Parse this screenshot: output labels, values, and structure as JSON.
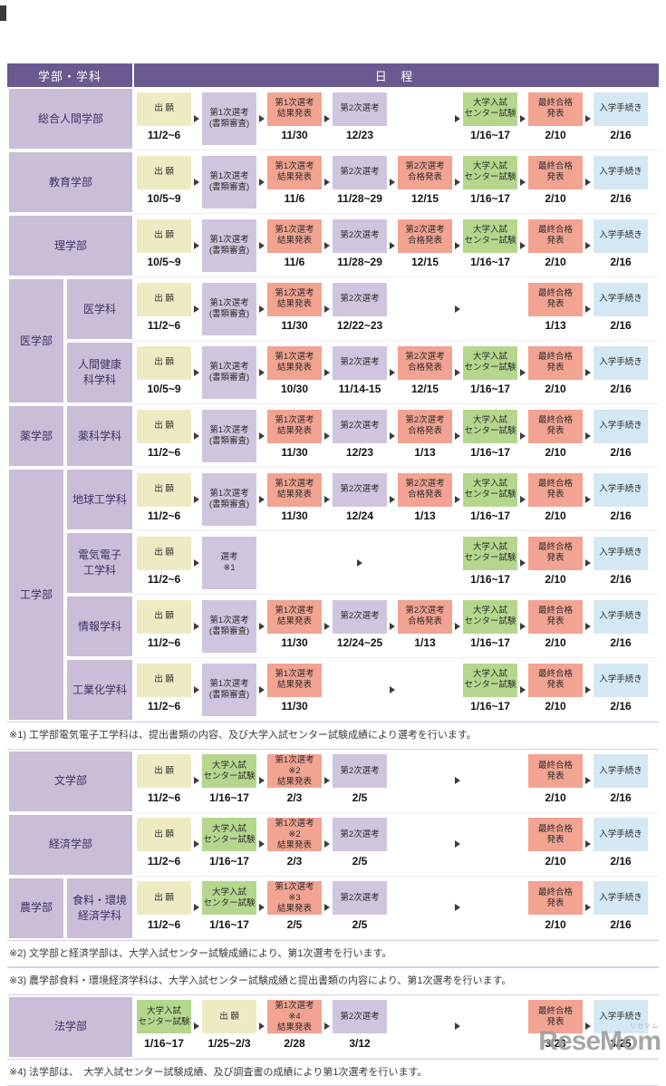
{
  "header": {
    "left": "学部・学科",
    "right": "日 程"
  },
  "watermark": {
    "text": "ReseMom",
    "sub": "リセマム"
  },
  "cell_kinds": {
    "app": {
      "bg": "#eeebc4",
      "lines": [
        "出 願"
      ],
      "full": false
    },
    "screen1": {
      "bg": "#d0c5df",
      "lines": [
        "第1次選考",
        "(書類審査)"
      ],
      "full": true
    },
    "res1": {
      "bg": "#f2a392",
      "lines": [
        "第1次選考",
        "結果発表"
      ],
      "full": false
    },
    "sel2": {
      "bg": "#d0c5df",
      "lines": [
        "第2次選考"
      ],
      "full": false
    },
    "pass2": {
      "bg": "#f2a392",
      "lines": [
        "第2次選考",
        "合格発表"
      ],
      "full": false
    },
    "center": {
      "bg": "#b5d78d",
      "lines": [
        "大学入試",
        "センター試験"
      ],
      "full": false
    },
    "final": {
      "bg": "#f2a392",
      "lines": [
        "最終合格",
        "発表"
      ],
      "full": false
    },
    "proc": {
      "bg": "#d3e8f3",
      "lines": [
        "入学手続き"
      ],
      "full": false
    },
    "sel_n1": {
      "bg": "#d0c5df",
      "lines": [
        "選考",
        "※1"
      ],
      "full": true
    },
    "res1_n2": {
      "bg": "#f2a392",
      "lines": [
        "第1次選考",
        "※2",
        "結果発表"
      ],
      "full": false
    },
    "res1_n3": {
      "bg": "#f2a392",
      "lines": [
        "第1次選考",
        "※3",
        "結果発表"
      ],
      "full": false
    },
    "res1_n4": {
      "bg": "#f2a392",
      "lines": [
        "第1次選考",
        "※4",
        "結果発表"
      ],
      "full": false
    }
  },
  "sections": [
    {
      "rows": [
        {
          "left": {
            "type": "full",
            "label": "総合人間学部"
          },
          "seq": [
            {
              "k": "app",
              "d": "11/2~6"
            },
            {
              "k": "screen1"
            },
            {
              "k": "res1",
              "d": "11/30"
            },
            {
              "k": "sel2",
              "d": "12/23"
            },
            {
              "k": "empty"
            },
            {
              "k": "center",
              "d": "1/16~17"
            },
            {
              "k": "final",
              "d": "2/10"
            },
            {
              "k": "proc",
              "d": "2/16"
            }
          ],
          "gaps": [
            1,
            1,
            1,
            0,
            1,
            1,
            1
          ]
        },
        {
          "left": {
            "type": "full",
            "label": "教育学部"
          },
          "seq": [
            {
              "k": "app",
              "d": "10/5~9"
            },
            {
              "k": "screen1"
            },
            {
              "k": "res1",
              "d": "11/6"
            },
            {
              "k": "sel2",
              "d": "11/28~29"
            },
            {
              "k": "pass2",
              "d": "12/15"
            },
            {
              "k": "center",
              "d": "1/16~17"
            },
            {
              "k": "final",
              "d": "2/10"
            },
            {
              "k": "proc",
              "d": "2/16"
            }
          ],
          "gaps": [
            1,
            1,
            1,
            1,
            1,
            1,
            1
          ]
        },
        {
          "left": {
            "type": "full",
            "label": "理学部"
          },
          "seq": [
            {
              "k": "app",
              "d": "10/5~9"
            },
            {
              "k": "screen1"
            },
            {
              "k": "res1",
              "d": "11/6"
            },
            {
              "k": "sel2",
              "d": "11/28~29"
            },
            {
              "k": "pass2",
              "d": "12/15"
            },
            {
              "k": "center",
              "d": "1/16~17"
            },
            {
              "k": "final",
              "d": "2/10"
            },
            {
              "k": "proc",
              "d": "2/16"
            }
          ],
          "gaps": [
            1,
            1,
            1,
            1,
            1,
            1,
            1
          ]
        },
        {
          "left": {
            "type": "group",
            "label": "医学部",
            "span": 2,
            "dept": "医学科"
          },
          "seq": [
            {
              "k": "app",
              "d": "11/2~6"
            },
            {
              "k": "screen1"
            },
            {
              "k": "res1",
              "d": "11/30"
            },
            {
              "k": "sel2",
              "d": "12/22~23"
            },
            {
              "k": "empty"
            },
            {
              "k": "empty"
            },
            {
              "k": "final",
              "d": "1/13"
            },
            {
              "k": "proc",
              "d": "2/16"
            }
          ],
          "gaps": [
            1,
            1,
            1,
            0,
            1,
            0,
            1
          ]
        },
        {
          "left": {
            "type": "dept",
            "dept": "人間健康\n科学科"
          },
          "seq": [
            {
              "k": "app",
              "d": "10/5~9"
            },
            {
              "k": "screen1"
            },
            {
              "k": "res1",
              "d": "10/30"
            },
            {
              "k": "sel2",
              "d": "11/14-15"
            },
            {
              "k": "pass2",
              "d": "12/15"
            },
            {
              "k": "center",
              "d": "1/16~17"
            },
            {
              "k": "final",
              "d": "2/10"
            },
            {
              "k": "proc",
              "d": "2/16"
            }
          ],
          "gaps": [
            1,
            1,
            1,
            1,
            1,
            1,
            1
          ]
        },
        {
          "left": {
            "type": "group",
            "label": "薬学部",
            "span": 1,
            "dept": "薬科学科"
          },
          "seq": [
            {
              "k": "app",
              "d": "11/2~6"
            },
            {
              "k": "screen1"
            },
            {
              "k": "res1",
              "d": "11/30"
            },
            {
              "k": "sel2",
              "d": "12/23"
            },
            {
              "k": "pass2",
              "d": "1/13"
            },
            {
              "k": "center",
              "d": "1/16~17"
            },
            {
              "k": "final",
              "d": "2/10"
            },
            {
              "k": "proc",
              "d": "2/16"
            }
          ],
          "gaps": [
            1,
            1,
            1,
            1,
            1,
            1,
            1
          ]
        },
        {
          "left": {
            "type": "group",
            "label": "工学部",
            "span": 4,
            "dept": "地球工学科"
          },
          "seq": [
            {
              "k": "app",
              "d": "11/2~6"
            },
            {
              "k": "screen1"
            },
            {
              "k": "res1",
              "d": "11/30"
            },
            {
              "k": "sel2",
              "d": "12/24"
            },
            {
              "k": "pass2",
              "d": "1/13"
            },
            {
              "k": "center",
              "d": "1/16~17"
            },
            {
              "k": "final",
              "d": "2/10"
            },
            {
              "k": "proc",
              "d": "2/16"
            }
          ],
          "gaps": [
            1,
            1,
            1,
            1,
            1,
            1,
            1
          ]
        },
        {
          "left": {
            "type": "dept",
            "dept": "電気電子\n工学科"
          },
          "seq": [
            {
              "k": "app",
              "d": "11/2~6"
            },
            {
              "k": "sel_n1"
            },
            {
              "k": "espan",
              "n": 3
            },
            {
              "k": "center",
              "d": "1/16~17"
            },
            {
              "k": "final",
              "d": "2/10"
            },
            {
              "k": "proc",
              "d": "2/16"
            }
          ],
          "gaps": [
            1,
            0,
            0,
            1,
            1
          ]
        },
        {
          "left": {
            "type": "dept",
            "dept": "情報学科"
          },
          "seq": [
            {
              "k": "app",
              "d": "11/2~6"
            },
            {
              "k": "screen1"
            },
            {
              "k": "res1",
              "d": "11/30"
            },
            {
              "k": "sel2",
              "d": "12/24~25"
            },
            {
              "k": "pass2",
              "d": "1/13"
            },
            {
              "k": "center",
              "d": "1/16~17"
            },
            {
              "k": "final",
              "d": "2/10"
            },
            {
              "k": "proc",
              "d": "2/16"
            }
          ],
          "gaps": [
            1,
            1,
            1,
            1,
            1,
            1,
            1
          ]
        },
        {
          "left": {
            "type": "dept",
            "dept": "工業化学科"
          },
          "seq": [
            {
              "k": "app",
              "d": "11/2~6"
            },
            {
              "k": "screen1"
            },
            {
              "k": "res1",
              "d": "11/30"
            },
            {
              "k": "empty"
            },
            {
              "k": "empty"
            },
            {
              "k": "center",
              "d": "1/16~17"
            },
            {
              "k": "final",
              "d": "2/10"
            },
            {
              "k": "proc",
              "d": "2/16"
            }
          ],
          "gaps": [
            1,
            1,
            0,
            1,
            0,
            1,
            1
          ]
        }
      ],
      "notes": [
        "※1) 工学部電気電子工学科は、提出書類の内容、及び大学入試センター試験成績により選考を行います。"
      ]
    },
    {
      "rows": [
        {
          "left": {
            "type": "full",
            "label": "文学部"
          },
          "seq": [
            {
              "k": "app",
              "d": "11/2~6"
            },
            {
              "k": "center",
              "d": "1/16~17"
            },
            {
              "k": "res1_n2",
              "d": "2/3"
            },
            {
              "k": "sel2",
              "d": "2/5"
            },
            {
              "k": "empty"
            },
            {
              "k": "empty"
            },
            {
              "k": "final",
              "d": "2/10"
            },
            {
              "k": "proc",
              "d": "2/16"
            }
          ],
          "gaps": [
            1,
            1,
            1,
            0,
            1,
            0,
            1
          ]
        },
        {
          "left": {
            "type": "full",
            "label": "経済学部"
          },
          "seq": [
            {
              "k": "app",
              "d": "11/2~6"
            },
            {
              "k": "center",
              "d": "1/16~17"
            },
            {
              "k": "res1_n2",
              "d": "2/3"
            },
            {
              "k": "sel2",
              "d": "2/5"
            },
            {
              "k": "empty"
            },
            {
              "k": "empty"
            },
            {
              "k": "final",
              "d": "2/10"
            },
            {
              "k": "proc",
              "d": "2/16"
            }
          ],
          "gaps": [
            1,
            1,
            1,
            0,
            1,
            0,
            1
          ]
        },
        {
          "left": {
            "type": "group",
            "label": "農学部",
            "span": 1,
            "dept": "食料・環境\n経済学科"
          },
          "seq": [
            {
              "k": "app",
              "d": "11/2~6"
            },
            {
              "k": "center",
              "d": "1/16~17"
            },
            {
              "k": "res1_n3",
              "d": "2/5"
            },
            {
              "k": "sel2",
              "d": "2/5"
            },
            {
              "k": "empty"
            },
            {
              "k": "empty"
            },
            {
              "k": "final",
              "d": "2/10"
            },
            {
              "k": "proc",
              "d": "2/16"
            }
          ],
          "gaps": [
            1,
            1,
            1,
            0,
            1,
            0,
            1
          ]
        }
      ],
      "notes": [
        "※2) 文学部と経済学部は、大学入試センター試験成績により、第1次選考を行います。",
        "※3) 農学部食料・環境経済学科は、大学入試センター試験成績と提出書類の内容により、第1次選考を行います。"
      ]
    },
    {
      "rows": [
        {
          "left": {
            "type": "full",
            "label": "法学部"
          },
          "seq": [
            {
              "k": "center",
              "d": "1/16~17"
            },
            {
              "k": "app",
              "d": "1/25~2/3"
            },
            {
              "k": "res1_n4",
              "d": "2/28"
            },
            {
              "k": "sel2",
              "d": "3/12"
            },
            {
              "k": "empty"
            },
            {
              "k": "empty"
            },
            {
              "k": "final",
              "d": "3/23"
            },
            {
              "k": "proc",
              "d": "3/25"
            }
          ],
          "gaps": [
            1,
            1,
            1,
            0,
            1,
            0,
            1
          ]
        }
      ],
      "notes": [
        "※4) 法学部は、　大学入試センター試験成績、及び調査書の成績により第1次選考を行います。"
      ]
    }
  ]
}
